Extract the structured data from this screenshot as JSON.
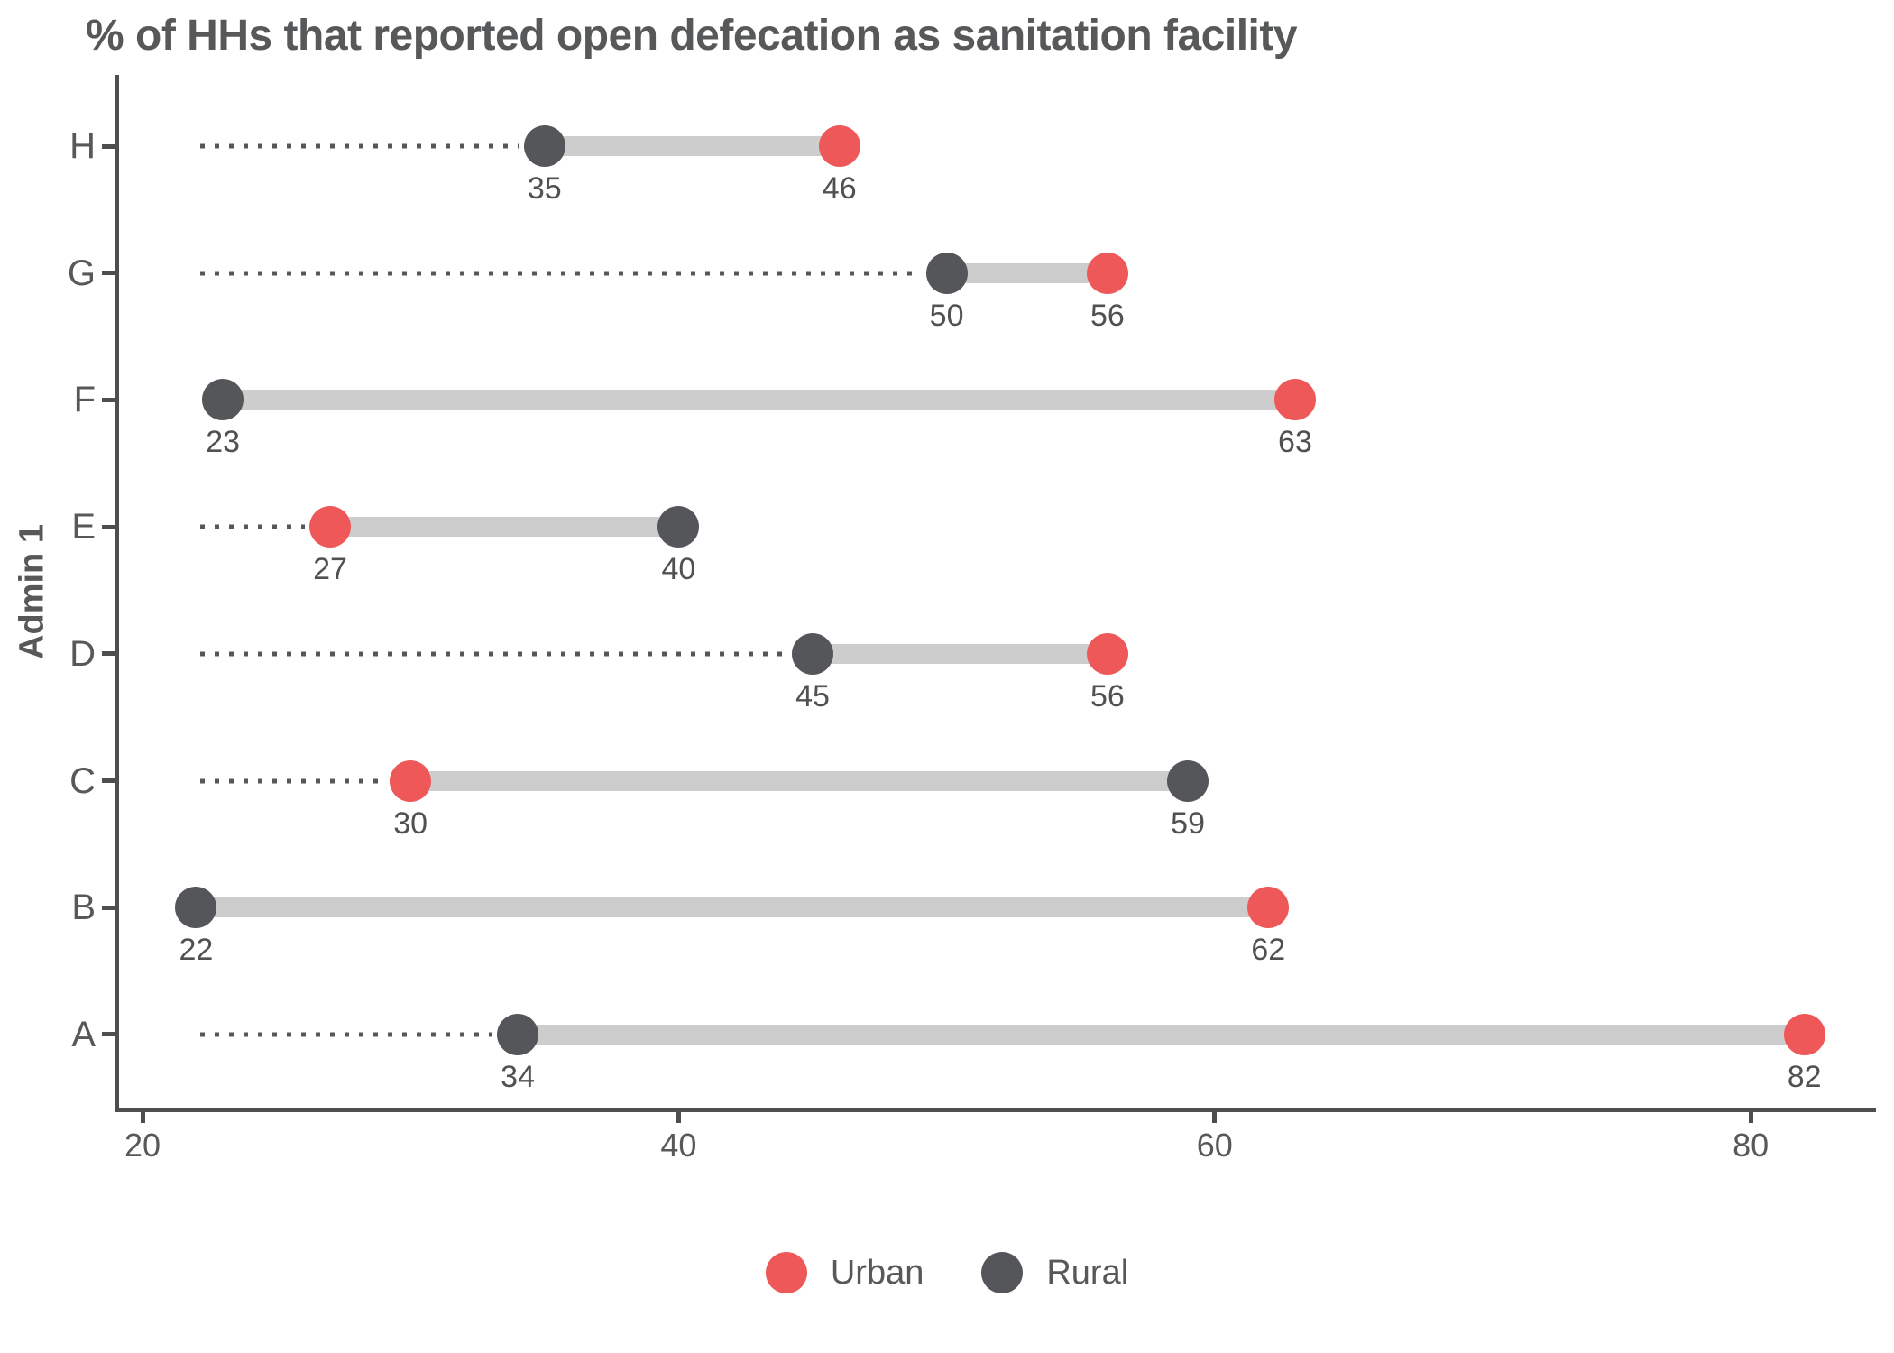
{
  "chart_data": {
    "type": "scatter",
    "variant": "dumbbell",
    "title": "% of HHs that reported open defecation as sanitation facility",
    "xlabel": "",
    "ylabel": "Admin 1",
    "categories": [
      "H",
      "G",
      "F",
      "E",
      "D",
      "C",
      "B",
      "A"
    ],
    "series": [
      {
        "name": "Urban",
        "color": "#EE5859",
        "values": [
          46,
          56,
          63,
          27,
          56,
          30,
          62,
          82
        ]
      },
      {
        "name": "Rural",
        "color": "#55565A",
        "values": [
          35,
          50,
          23,
          40,
          45,
          59,
          22,
          34
        ]
      }
    ],
    "point_labels_shown": true,
    "x_ticks": [
      20,
      40,
      60,
      80
    ],
    "xlim": [
      19,
      84.5
    ],
    "grid": false,
    "legend_position": "bottom",
    "connector_color": "#CDCDCD",
    "leader_line_style": "dotted"
  }
}
